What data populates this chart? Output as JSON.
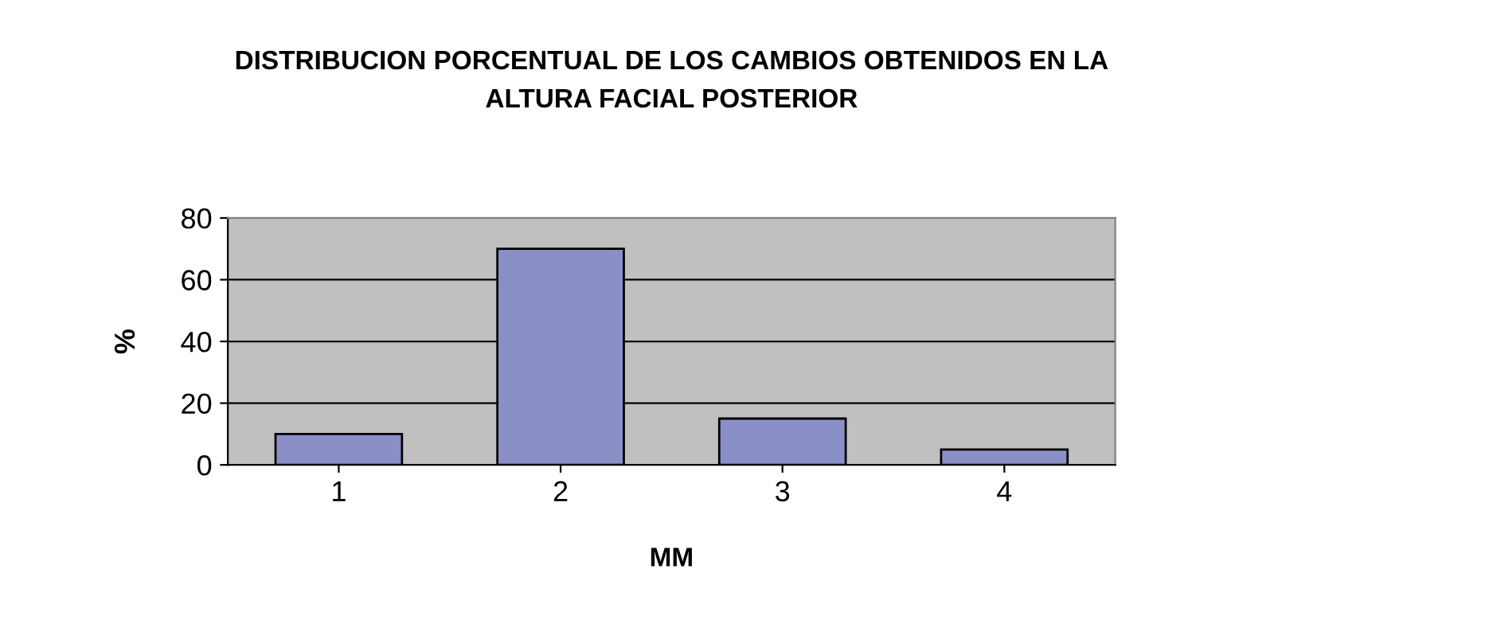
{
  "chart_data": {
    "type": "bar",
    "title": "DISTRIBUCION PORCENTUAL DE LOS CAMBIOS OBTENIDOS EN LA\nALTURA FACIAL POSTERIOR",
    "xlabel": "MM",
    "ylabel": "%",
    "categories": [
      "1",
      "2",
      "3",
      "4"
    ],
    "values": [
      10,
      70,
      15,
      5
    ],
    "color": "#8a8fc8",
    "ylim": [
      0,
      80
    ],
    "yticks": [
      0,
      20,
      40,
      60,
      80
    ],
    "grid": "y",
    "legend": false
  }
}
